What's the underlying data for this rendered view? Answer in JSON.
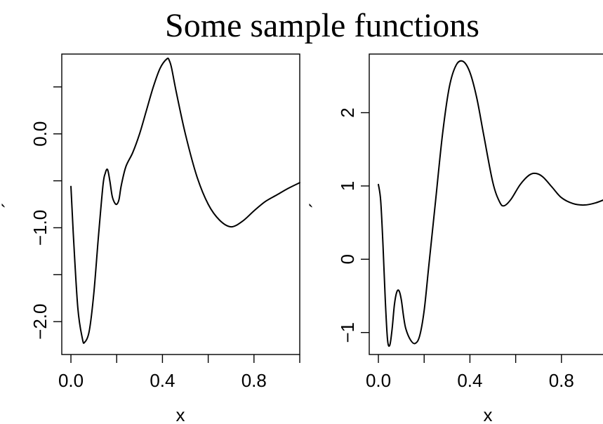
{
  "figure": {
    "title": "Some sample functions"
  },
  "chart_data": [
    {
      "type": "line",
      "xlabel": "x",
      "ylabel": "´",
      "xlim": [
        -0.04,
        1.0
      ],
      "ylim": [
        -2.35,
        0.85
      ],
      "x_ticks": [
        0.0,
        0.2,
        0.4,
        0.6,
        0.8,
        1.0
      ],
      "x_tick_labels": [
        "0.0",
        "",
        "0.4",
        "",
        "0.8",
        ""
      ],
      "y_ticks": [
        -2.0,
        -1.5,
        -1.0,
        -0.5,
        0.0,
        0.5
      ],
      "y_tick_labels": [
        "−2.0",
        "",
        "−1.0",
        "",
        "0.0",
        ""
      ],
      "series": [
        {
          "x": [
            0.0,
            0.01,
            0.03,
            0.05,
            0.06,
            0.08,
            0.1,
            0.12,
            0.14,
            0.15,
            0.16,
            0.17,
            0.18,
            0.19,
            0.2,
            0.21,
            0.22,
            0.24,
            0.27,
            0.3,
            0.33,
            0.36,
            0.39,
            0.42,
            0.43,
            0.44,
            0.46,
            0.5,
            0.55,
            0.6,
            0.65,
            0.7,
            0.75,
            0.8,
            0.85,
            0.9,
            0.95,
            1.0
          ],
          "y": [
            -0.56,
            -1.05,
            -1.85,
            -2.18,
            -2.22,
            -2.1,
            -1.7,
            -1.1,
            -0.55,
            -0.42,
            -0.38,
            -0.5,
            -0.66,
            -0.73,
            -0.75,
            -0.7,
            -0.55,
            -0.35,
            -0.2,
            0.0,
            0.25,
            0.5,
            0.7,
            0.8,
            0.78,
            0.7,
            0.45,
            0.0,
            -0.45,
            -0.75,
            -0.92,
            -0.99,
            -0.93,
            -0.82,
            -0.72,
            -0.65,
            -0.58,
            -0.52
          ]
        }
      ]
    },
    {
      "type": "line",
      "xlabel": "x",
      "ylabel": "´",
      "xlim": [
        -0.04,
        1.0
      ],
      "ylim": [
        -1.3,
        2.8
      ],
      "x_ticks": [
        0.0,
        0.2,
        0.4,
        0.6,
        0.8,
        1.0
      ],
      "x_tick_labels": [
        "0.0",
        "",
        "0.4",
        "",
        "0.8",
        ""
      ],
      "y_ticks": [
        -1,
        0,
        1,
        2
      ],
      "y_tick_labels": [
        "−1",
        "0",
        "1",
        "2"
      ],
      "series": [
        {
          "x": [
            0.0,
            0.01,
            0.02,
            0.03,
            0.04,
            0.05,
            0.06,
            0.07,
            0.08,
            0.09,
            0.1,
            0.11,
            0.12,
            0.14,
            0.16,
            0.18,
            0.2,
            0.22,
            0.25,
            0.28,
            0.31,
            0.34,
            0.37,
            0.4,
            0.43,
            0.46,
            0.5,
            0.53,
            0.55,
            0.58,
            0.62,
            0.66,
            0.69,
            0.72,
            0.76,
            0.8,
            0.85,
            0.9,
            0.95,
            1.0
          ],
          "y": [
            1.02,
            0.8,
            0.2,
            -0.55,
            -1.1,
            -1.17,
            -0.95,
            -0.62,
            -0.45,
            -0.43,
            -0.55,
            -0.78,
            -0.95,
            -1.1,
            -1.15,
            -1.05,
            -0.7,
            -0.1,
            0.8,
            1.7,
            2.35,
            2.65,
            2.7,
            2.55,
            2.2,
            1.7,
            1.05,
            0.78,
            0.73,
            0.82,
            1.02,
            1.15,
            1.17,
            1.12,
            0.98,
            0.84,
            0.76,
            0.74,
            0.77,
            0.83
          ]
        }
      ]
    }
  ]
}
